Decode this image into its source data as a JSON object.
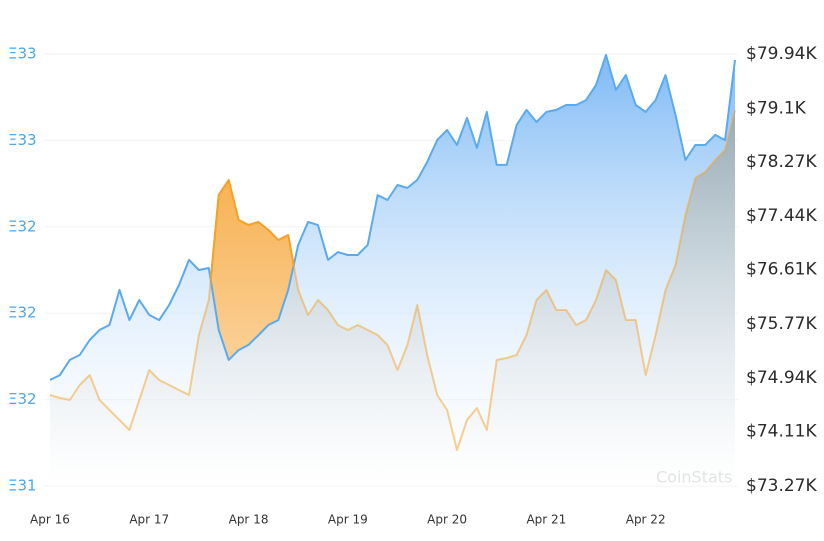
{
  "chart_data": {
    "type": "line",
    "watermark": "CoinStats",
    "x": [
      0,
      0.1,
      0.2,
      0.3,
      0.4,
      0.5,
      0.6,
      0.7,
      0.8,
      0.9,
      1,
      1.1,
      1.2,
      1.3,
      1.4,
      1.5,
      1.6,
      1.7,
      1.8,
      1.9,
      2,
      2.1,
      2.2,
      2.3,
      2.4,
      2.5,
      2.6,
      2.7,
      2.8,
      2.9,
      3,
      3.1,
      3.2,
      3.3,
      3.4,
      3.5,
      3.6,
      3.7,
      3.8,
      3.9,
      4,
      4.1,
      4.2,
      4.3,
      4.4,
      4.5,
      4.6,
      4.7,
      4.8,
      4.9,
      5,
      5.1,
      5.2,
      5.3,
      5.4,
      5.5,
      5.6,
      5.7,
      5.8,
      5.9,
      6,
      6.1,
      6.2,
      6.3,
      6.4,
      6.5,
      6.6,
      6.7,
      6.8,
      6.9
    ],
    "series": [
      {
        "color": "#5aaaf0",
        "axis": "y",
        "values": [
          31.768,
          31.785,
          31.838,
          31.855,
          31.907,
          31.942,
          31.959,
          32.081,
          31.976,
          32.046,
          31.994,
          31.976,
          32.028,
          32.098,
          32.185,
          32.15,
          32.157,
          31.942,
          31.838,
          31.872,
          31.89,
          31.924,
          31.959,
          31.976,
          32.081,
          32.237,
          32.317,
          32.306,
          32.185,
          32.212,
          32.202,
          32.202,
          32.237,
          32.41,
          32.393,
          32.445,
          32.435,
          32.463,
          32.525,
          32.601,
          32.636,
          32.584,
          32.678,
          32.574,
          32.699,
          32.515,
          32.515,
          32.653,
          32.706,
          32.664,
          32.699,
          32.706,
          32.723,
          32.723,
          32.74,
          32.792,
          32.897,
          32.775,
          32.827,
          32.723,
          32.699,
          32.74,
          32.827,
          32.688,
          32.532,
          32.584,
          32.584,
          32.619,
          32.601,
          32.879
        ]
      },
      {
        "color": "#f5a227",
        "axis": "y2",
        "values": [
          74675,
          74629,
          74598,
          74829,
          74984,
          74598,
          74443,
          74289,
          74135,
          74598,
          75061,
          74907,
          74829,
          74752,
          74675,
          75601,
          76142,
          77763,
          77995,
          77377,
          77300,
          77346,
          77223,
          77068,
          77145,
          76296,
          75910,
          76142,
          75987,
          75756,
          75679,
          75756,
          75679,
          75601,
          75447,
          75061,
          75447,
          76065,
          75293,
          74675,
          74443,
          73826,
          74289,
          74474,
          74135,
          75215,
          75246,
          75293,
          75601,
          76142,
          76296,
          75987,
          75987,
          75756,
          75833,
          76142,
          76605,
          76451,
          75833,
          75833,
          74984,
          75601,
          76296,
          76682,
          77454,
          78025,
          78118,
          78303,
          78458,
          79075
        ]
      }
    ],
    "xlim": [
      -0.05,
      6.93
    ],
    "xticks": [
      {
        "value": 0,
        "label": "Apr 16"
      },
      {
        "value": 1,
        "label": "Apr 17"
      },
      {
        "value": 2,
        "label": "Apr 18"
      },
      {
        "value": 3,
        "label": "Apr 19"
      },
      {
        "value": 4,
        "label": "Apr 20"
      },
      {
        "value": 5,
        "label": "Apr 21"
      },
      {
        "value": 6,
        "label": "Apr 22"
      }
    ],
    "ylim": [
      31.4,
      32.9
    ],
    "yticks": [
      {
        "value": 32.9,
        "label": "Ξ33"
      },
      {
        "value": 32.6,
        "label": "Ξ33"
      },
      {
        "value": 32.3,
        "label": "Ξ32"
      },
      {
        "value": 32.0,
        "label": "Ξ32"
      },
      {
        "value": 31.7,
        "label": "Ξ32"
      },
      {
        "value": 31.4,
        "label": "Ξ31"
      }
    ],
    "y2lim": [
      73270,
      79940
    ],
    "y2ticks": [
      {
        "value": 79940,
        "label": "$79.94K"
      },
      {
        "value": 79100,
        "label": "$79.1K"
      },
      {
        "value": 78270,
        "label": "$78.27K"
      },
      {
        "value": 77440,
        "label": "$77.44K"
      },
      {
        "value": 76610,
        "label": "$76.61K"
      },
      {
        "value": 75770,
        "label": "$75.77K"
      },
      {
        "value": 74940,
        "label": "$74.94K"
      },
      {
        "value": 74110,
        "label": "$74.11K"
      },
      {
        "value": 73270,
        "label": "$73.27K"
      }
    ],
    "grid": true
  }
}
